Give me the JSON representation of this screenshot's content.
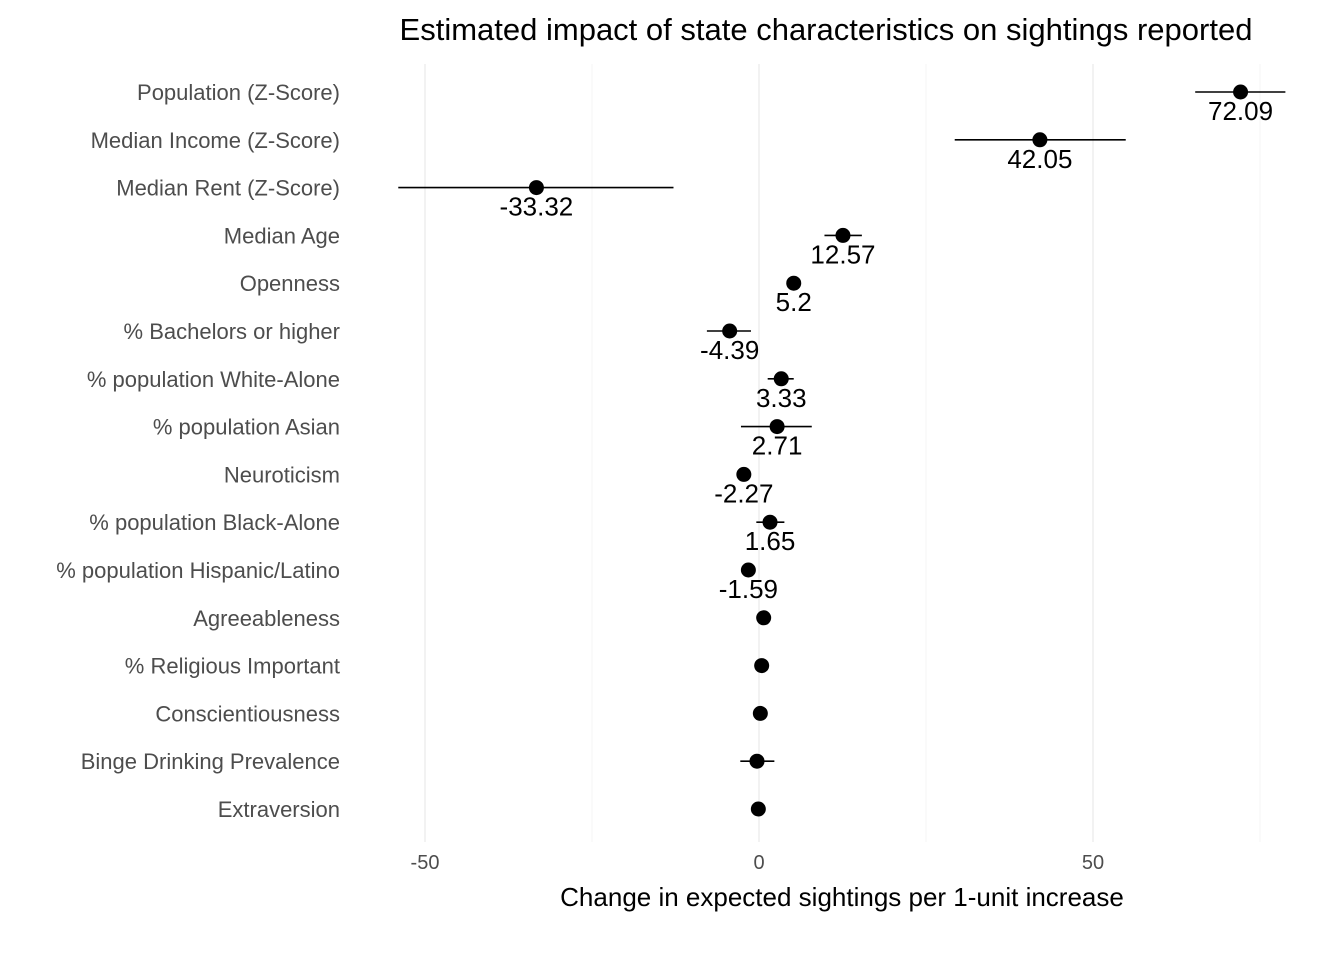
{
  "chart_data": {
    "type": "scatter",
    "title": "Estimated impact of state characteristics on sightings reported",
    "xlabel": "Change in expected sightings per 1-unit increase",
    "ylabel": "",
    "xlim": [
      -60,
      80
    ],
    "x_ticks": [
      -50,
      0,
      50
    ],
    "x_tick_labels": [
      "-50",
      "0",
      "50"
    ],
    "grid": true,
    "marker_color": "#000000",
    "points": [
      {
        "category": "Population (Z-Score)",
        "estimate": 72.09,
        "ci_low": 65.3,
        "ci_high": 78.8,
        "label": "72.09"
      },
      {
        "category": "Median Income (Z-Score)",
        "estimate": 42.05,
        "ci_low": 29.3,
        "ci_high": 54.9,
        "label": "42.05"
      },
      {
        "category": "Median Rent (Z-Score)",
        "estimate": -33.32,
        "ci_low": -54.0,
        "ci_high": -12.8,
        "label": "-33.32"
      },
      {
        "category": "Median Age",
        "estimate": 12.57,
        "ci_low": 9.8,
        "ci_high": 15.4,
        "label": "12.57"
      },
      {
        "category": "Openness",
        "estimate": 5.2,
        "ci_low": 4.4,
        "ci_high": 6.0,
        "label": "5.2"
      },
      {
        "category": "% Bachelors or higher",
        "estimate": -4.39,
        "ci_low": -7.8,
        "ci_high": -1.2,
        "label": "-4.39"
      },
      {
        "category": "% population White-Alone",
        "estimate": 3.33,
        "ci_low": 1.3,
        "ci_high": 5.2,
        "label": "3.33"
      },
      {
        "category": "% population Asian",
        "estimate": 2.71,
        "ci_low": -2.7,
        "ci_high": 7.9,
        "label": "2.71"
      },
      {
        "category": "Neuroticism",
        "estimate": -2.27,
        "ci_low": -2.9,
        "ci_high": -1.6,
        "label": "-2.27"
      },
      {
        "category": "% population Black-Alone",
        "estimate": 1.65,
        "ci_low": -0.4,
        "ci_high": 3.8,
        "label": "1.65"
      },
      {
        "category": "% population Hispanic/Latino",
        "estimate": -1.59,
        "ci_low": -2.3,
        "ci_high": -0.9,
        "label": "-1.59"
      },
      {
        "category": "Agreeableness",
        "estimate": 0.7,
        "ci_low": 0.4,
        "ci_high": 1.0,
        "label": ""
      },
      {
        "category": "% Religious Important",
        "estimate": 0.4,
        "ci_low": 0.1,
        "ci_high": 0.7,
        "label": ""
      },
      {
        "category": "Conscientiousness",
        "estimate": 0.2,
        "ci_low": -0.1,
        "ci_high": 0.5,
        "label": ""
      },
      {
        "category": "Binge Drinking Prevalence",
        "estimate": -0.3,
        "ci_low": -2.8,
        "ci_high": 2.3,
        "label": ""
      },
      {
        "category": "Extraversion",
        "estimate": -0.1,
        "ci_low": -0.3,
        "ci_high": 0.1,
        "label": ""
      }
    ]
  }
}
